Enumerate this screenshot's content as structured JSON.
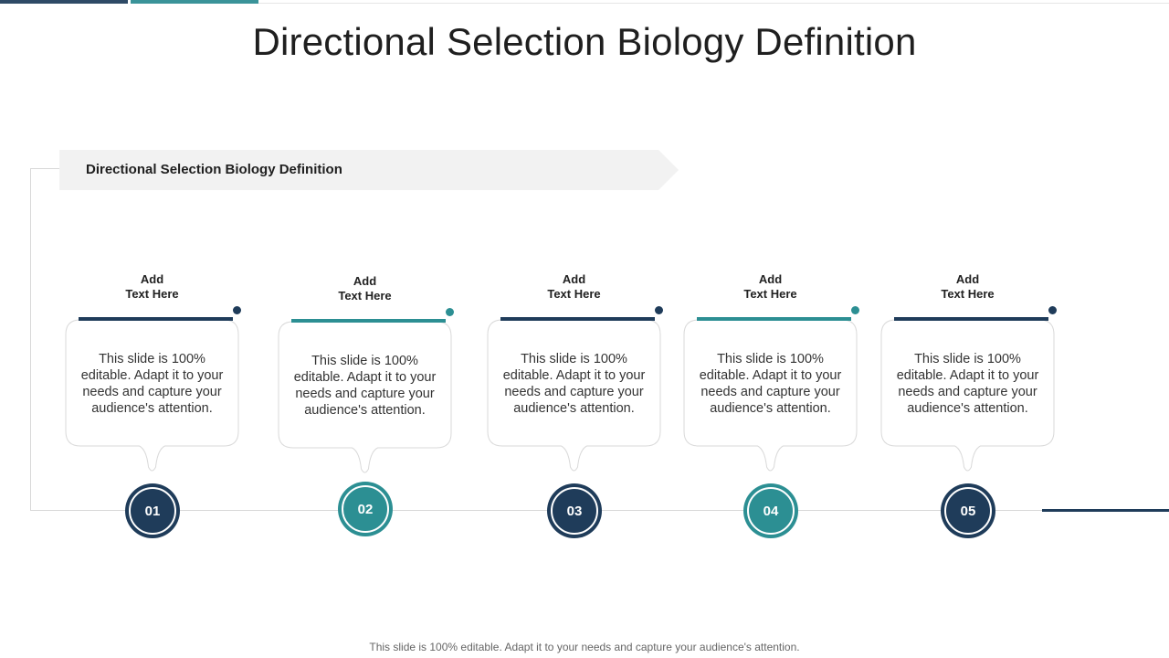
{
  "title": "Directional Selection Biology Definition",
  "subtitle": "Directional Selection Biology Definition",
  "colors": {
    "navy": "#1f3c5a",
    "teal": "#2c8f93",
    "banner": "#f2f2f2"
  },
  "steps": [
    {
      "number": "01",
      "heading_line1": "Add",
      "heading_line2": "Text Here",
      "body": "This slide is 100% editable. Adapt it to your needs and capture your audience's attention.",
      "color": "navy"
    },
    {
      "number": "02",
      "heading_line1": "Add",
      "heading_line2": "Text Here",
      "body": "This slide is 100% editable. Adapt it to your needs and capture your audience's attention.",
      "color": "teal"
    },
    {
      "number": "03",
      "heading_line1": "Add",
      "heading_line2": "Text Here",
      "body": "This slide is 100% editable. Adapt it to your needs and capture your audience's attention.",
      "color": "navy"
    },
    {
      "number": "04",
      "heading_line1": "Add",
      "heading_line2": "Text Here",
      "body": "This slide is 100% editable. Adapt it to your needs and capture your audience's attention.",
      "color": "teal"
    },
    {
      "number": "05",
      "heading_line1": "Add",
      "heading_line2": "Text Here",
      "body": "This slide is 100% editable. Adapt it to your needs and capture your audience's attention.",
      "color": "navy"
    }
  ],
  "footer": "This slide is 100% editable. Adapt it to your needs and capture your audience's attention."
}
